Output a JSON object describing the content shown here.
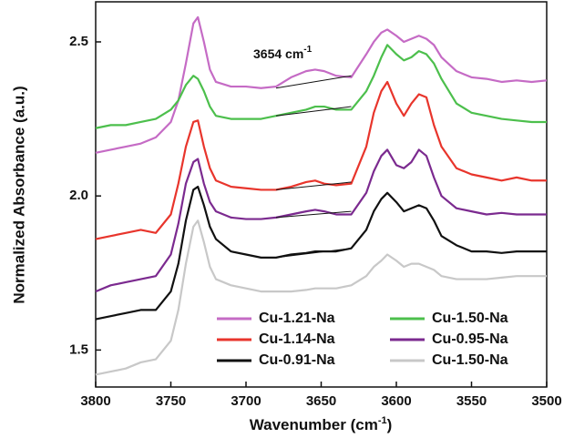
{
  "chart_data": {
    "type": "line",
    "x_label": {
      "text": "Wavenumber (cm",
      "sup": "-1",
      "after": ")"
    },
    "y_label": "Normalized Absorbance (a.u.)",
    "annotation": {
      "text": "3654 cm",
      "sup": "-1"
    },
    "xlim": [
      3800,
      3500
    ],
    "xticks": [
      3800,
      3750,
      3700,
      3650,
      3600,
      3550,
      3500
    ],
    "ylim": [
      1.38,
      2.63
    ],
    "yticks": [
      1.5,
      {
        "value": 2,
        "label": "2.0"
      },
      2.5
    ],
    "legend": "lower right",
    "x": [
      3800,
      3790,
      3780,
      3770,
      3760,
      3750,
      3745,
      3740,
      3735,
      3732,
      3728,
      3724,
      3720,
      3710,
      3700,
      3690,
      3680,
      3670,
      3660,
      3654,
      3648,
      3640,
      3630,
      3620,
      3615,
      3610,
      3606,
      3600,
      3595,
      3590,
      3585,
      3580,
      3575,
      3570,
      3560,
      3550,
      3540,
      3530,
      3520,
      3510,
      3500
    ],
    "series": [
      {
        "name": "Cu-1.21-Na",
        "color": "#c56bc5",
        "values": [
          2.14,
          2.15,
          2.16,
          2.17,
          2.19,
          2.24,
          2.31,
          2.43,
          2.56,
          2.58,
          2.5,
          2.41,
          2.37,
          2.355,
          2.355,
          2.35,
          2.355,
          2.385,
          2.405,
          2.41,
          2.405,
          2.39,
          2.385,
          2.46,
          2.5,
          2.53,
          2.54,
          2.52,
          2.5,
          2.51,
          2.52,
          2.51,
          2.49,
          2.45,
          2.405,
          2.385,
          2.38,
          2.37,
          2.375,
          2.37,
          2.375
        ]
      },
      {
        "name": "Cu-1.50-Na",
        "color": "#4cbf4c",
        "values": [
          2.22,
          2.23,
          2.23,
          2.24,
          2.25,
          2.28,
          2.31,
          2.36,
          2.39,
          2.38,
          2.34,
          2.29,
          2.26,
          2.25,
          2.25,
          2.25,
          2.26,
          2.27,
          2.28,
          2.29,
          2.29,
          2.28,
          2.28,
          2.34,
          2.39,
          2.45,
          2.49,
          2.46,
          2.44,
          2.45,
          2.47,
          2.46,
          2.43,
          2.38,
          2.3,
          2.27,
          2.26,
          2.25,
          2.245,
          2.24,
          2.24
        ]
      },
      {
        "name": "Cu-1.14-Na",
        "color": "#e8352c",
        "values": [
          1.86,
          1.87,
          1.88,
          1.89,
          1.88,
          1.94,
          2.04,
          2.16,
          2.24,
          2.245,
          2.16,
          2.09,
          2.05,
          2.03,
          2.025,
          2.02,
          2.02,
          2.03,
          2.045,
          2.05,
          2.04,
          2.035,
          2.04,
          2.16,
          2.27,
          2.34,
          2.37,
          2.3,
          2.26,
          2.3,
          2.33,
          2.32,
          2.23,
          2.16,
          2.09,
          2.07,
          2.06,
          2.05,
          2.06,
          2.05,
          2.05
        ]
      },
      {
        "name": "Cu-0.95-Na",
        "color": "#7b2a8f",
        "values": [
          1.69,
          1.71,
          1.72,
          1.73,
          1.74,
          1.81,
          1.91,
          2.04,
          2.11,
          2.12,
          2.04,
          1.98,
          1.95,
          1.93,
          1.925,
          1.925,
          1.93,
          1.94,
          1.95,
          1.955,
          1.95,
          1.94,
          1.94,
          2.01,
          2.08,
          2.13,
          2.15,
          2.1,
          2.09,
          2.11,
          2.15,
          2.13,
          2.06,
          2.0,
          1.96,
          1.95,
          1.94,
          1.945,
          1.94,
          1.94,
          1.94
        ]
      },
      {
        "name": "Cu-0.91-Na",
        "color": "#111111",
        "values": [
          1.6,
          1.61,
          1.62,
          1.63,
          1.63,
          1.69,
          1.78,
          1.92,
          2.02,
          2.03,
          1.97,
          1.9,
          1.86,
          1.82,
          1.81,
          1.8,
          1.8,
          1.81,
          1.815,
          1.82,
          1.82,
          1.82,
          1.83,
          1.89,
          1.95,
          1.99,
          2.01,
          1.98,
          1.95,
          1.96,
          1.97,
          1.96,
          1.92,
          1.87,
          1.84,
          1.82,
          1.82,
          1.815,
          1.82,
          1.82,
          1.82
        ]
      },
      {
        "name": "Cu-1.50-Na",
        "color": "#c8c8c8",
        "values": [
          1.42,
          1.43,
          1.44,
          1.46,
          1.47,
          1.53,
          1.63,
          1.78,
          1.9,
          1.92,
          1.85,
          1.77,
          1.73,
          1.71,
          1.7,
          1.69,
          1.69,
          1.69,
          1.695,
          1.7,
          1.7,
          1.7,
          1.71,
          1.74,
          1.77,
          1.79,
          1.81,
          1.79,
          1.77,
          1.78,
          1.78,
          1.77,
          1.76,
          1.74,
          1.73,
          1.73,
          1.73,
          1.735,
          1.74,
          1.74,
          1.74
        ]
      }
    ],
    "baselines": [
      {
        "x": [
          3680,
          3630
        ],
        "y": [
          2.35,
          2.39
        ]
      },
      {
        "x": [
          3680,
          3630
        ],
        "y": [
          2.26,
          2.29
        ]
      },
      {
        "x": [
          3680,
          3630
        ],
        "y": [
          2.02,
          2.045
        ]
      },
      {
        "x": [
          3680,
          3630
        ],
        "y": [
          1.93,
          1.95
        ]
      },
      {
        "x": [
          3680,
          3630
        ],
        "y": [
          1.8,
          1.83
        ]
      }
    ]
  }
}
